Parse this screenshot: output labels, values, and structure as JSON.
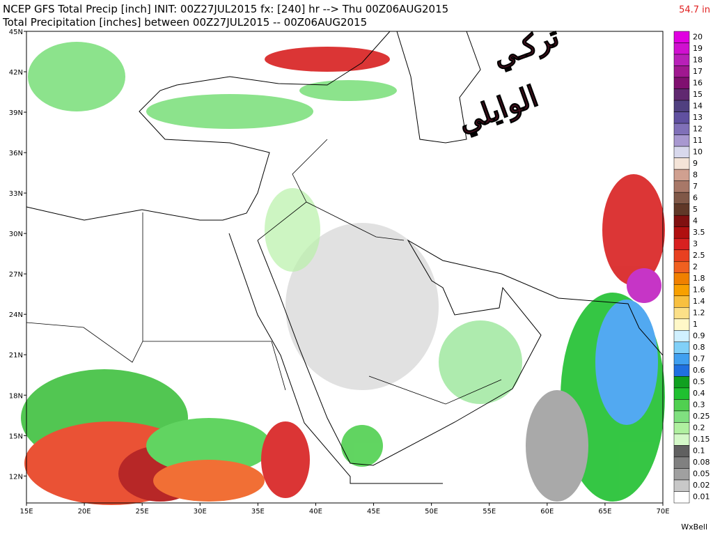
{
  "header": {
    "line1": "NCEP GFS Total Precip [inch] INIT: 00Z27JUL2015 fx: [240] hr --> Thu 00Z06AUG2015",
    "line2": "Total Precipitation [inches] between 00Z27JUL2015 -- 00Z06AUG2015",
    "max_value": "54.7 in"
  },
  "watermark": {
    "line1": "تركـي",
    "line2": "الوايلي"
  },
  "map": {
    "lon_range": [
      15,
      70
    ],
    "lat_range": [
      10,
      45
    ],
    "lat_ticks": [
      {
        "value": 45,
        "label": "45N"
      },
      {
        "value": 42,
        "label": "42N"
      },
      {
        "value": 39,
        "label": "39N"
      },
      {
        "value": 36,
        "label": "36N"
      },
      {
        "value": 33,
        "label": "33N"
      },
      {
        "value": 30,
        "label": "30N"
      },
      {
        "value": 27,
        "label": "27N"
      },
      {
        "value": 24,
        "label": "24N"
      },
      {
        "value": 21,
        "label": "21N"
      },
      {
        "value": 18,
        "label": "18N"
      },
      {
        "value": 15,
        "label": "15N"
      },
      {
        "value": 12,
        "label": "12N"
      }
    ],
    "lon_ticks": [
      {
        "value": 15,
        "label": "15E"
      },
      {
        "value": 20,
        "label": "20E"
      },
      {
        "value": 25,
        "label": "25E"
      },
      {
        "value": 30,
        "label": "30E"
      },
      {
        "value": 35,
        "label": "35E"
      },
      {
        "value": 40,
        "label": "40E"
      },
      {
        "value": 45,
        "label": "45E"
      },
      {
        "value": 50,
        "label": "50E"
      },
      {
        "value": 55,
        "label": "55E"
      },
      {
        "value": 60,
        "label": "60E"
      },
      {
        "value": 65,
        "label": "65E"
      },
      {
        "value": 70,
        "label": "70E"
      }
    ]
  },
  "legend": [
    {
      "label": "20",
      "color": "#e000e0"
    },
    {
      "label": "19",
      "color": "#d010d0"
    },
    {
      "label": "18",
      "color": "#b820b8"
    },
    {
      "label": "17",
      "color": "#a01890"
    },
    {
      "label": "16",
      "color": "#801070"
    },
    {
      "label": "15",
      "color": "#602870"
    },
    {
      "label": "14",
      "color": "#504080"
    },
    {
      "label": "13",
      "color": "#6050a0"
    },
    {
      "label": "12",
      "color": "#8070b8"
    },
    {
      "label": "11",
      "color": "#a898d0"
    },
    {
      "label": "10",
      "color": "#d8d8ec"
    },
    {
      "label": "9",
      "color": "#f4e4d8"
    },
    {
      "label": "8",
      "color": "#d0a090"
    },
    {
      "label": "7",
      "color": "#a87868"
    },
    {
      "label": "6",
      "color": "#805848"
    },
    {
      "label": "5",
      "color": "#603828"
    },
    {
      "label": "4",
      "color": "#801010"
    },
    {
      "label": "3.5",
      "color": "#b01010"
    },
    {
      "label": "3",
      "color": "#d82020"
    },
    {
      "label": "2.5",
      "color": "#e84020"
    },
    {
      "label": "2",
      "color": "#f06020"
    },
    {
      "label": "1.8",
      "color": "#f08000"
    },
    {
      "label": "1.6",
      "color": "#f8a000"
    },
    {
      "label": "1.4",
      "color": "#f8c040"
    },
    {
      "label": "1.2",
      "color": "#fce088"
    },
    {
      "label": "1",
      "color": "#fff8c8"
    },
    {
      "label": "0.9",
      "color": "#d0f0ff"
    },
    {
      "label": "0.8",
      "color": "#80d0f8"
    },
    {
      "label": "0.7",
      "color": "#40a0f0"
    },
    {
      "label": "0.6",
      "color": "#2070e0"
    },
    {
      "label": "0.5",
      "color": "#10a020"
    },
    {
      "label": "0.4",
      "color": "#20c030"
    },
    {
      "label": "0.3",
      "color": "#50d050"
    },
    {
      "label": "0.25",
      "color": "#80e080"
    },
    {
      "label": "0.2",
      "color": "#b0f0a0"
    },
    {
      "label": "0.15",
      "color": "#d4f8c8"
    },
    {
      "label": "0.1",
      "color": "#606060"
    },
    {
      "label": "0.08",
      "color": "#808080"
    },
    {
      "label": "0.05",
      "color": "#a0a0a0"
    },
    {
      "label": "0.02",
      "color": "#c8c8c8"
    },
    {
      "label": "0.01",
      "color": "#ffffff"
    }
  ],
  "credit": "WxBell"
}
